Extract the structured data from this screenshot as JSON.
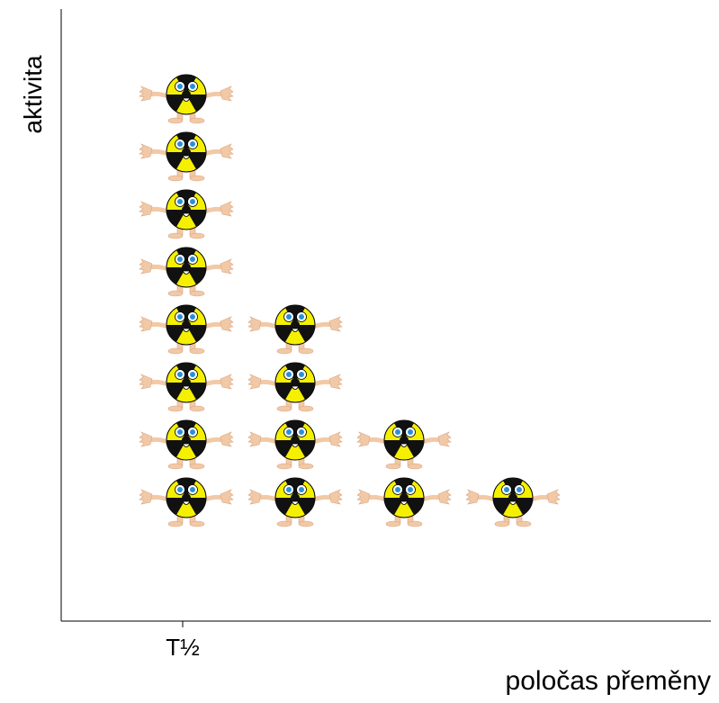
{
  "chart_data": {
    "type": "pictogram",
    "y_label": "aktivita",
    "x_label": "poločas přeměny",
    "categories": [
      "T½",
      null,
      null,
      null
    ],
    "values": [
      8,
      4,
      2,
      1
    ]
  }
}
